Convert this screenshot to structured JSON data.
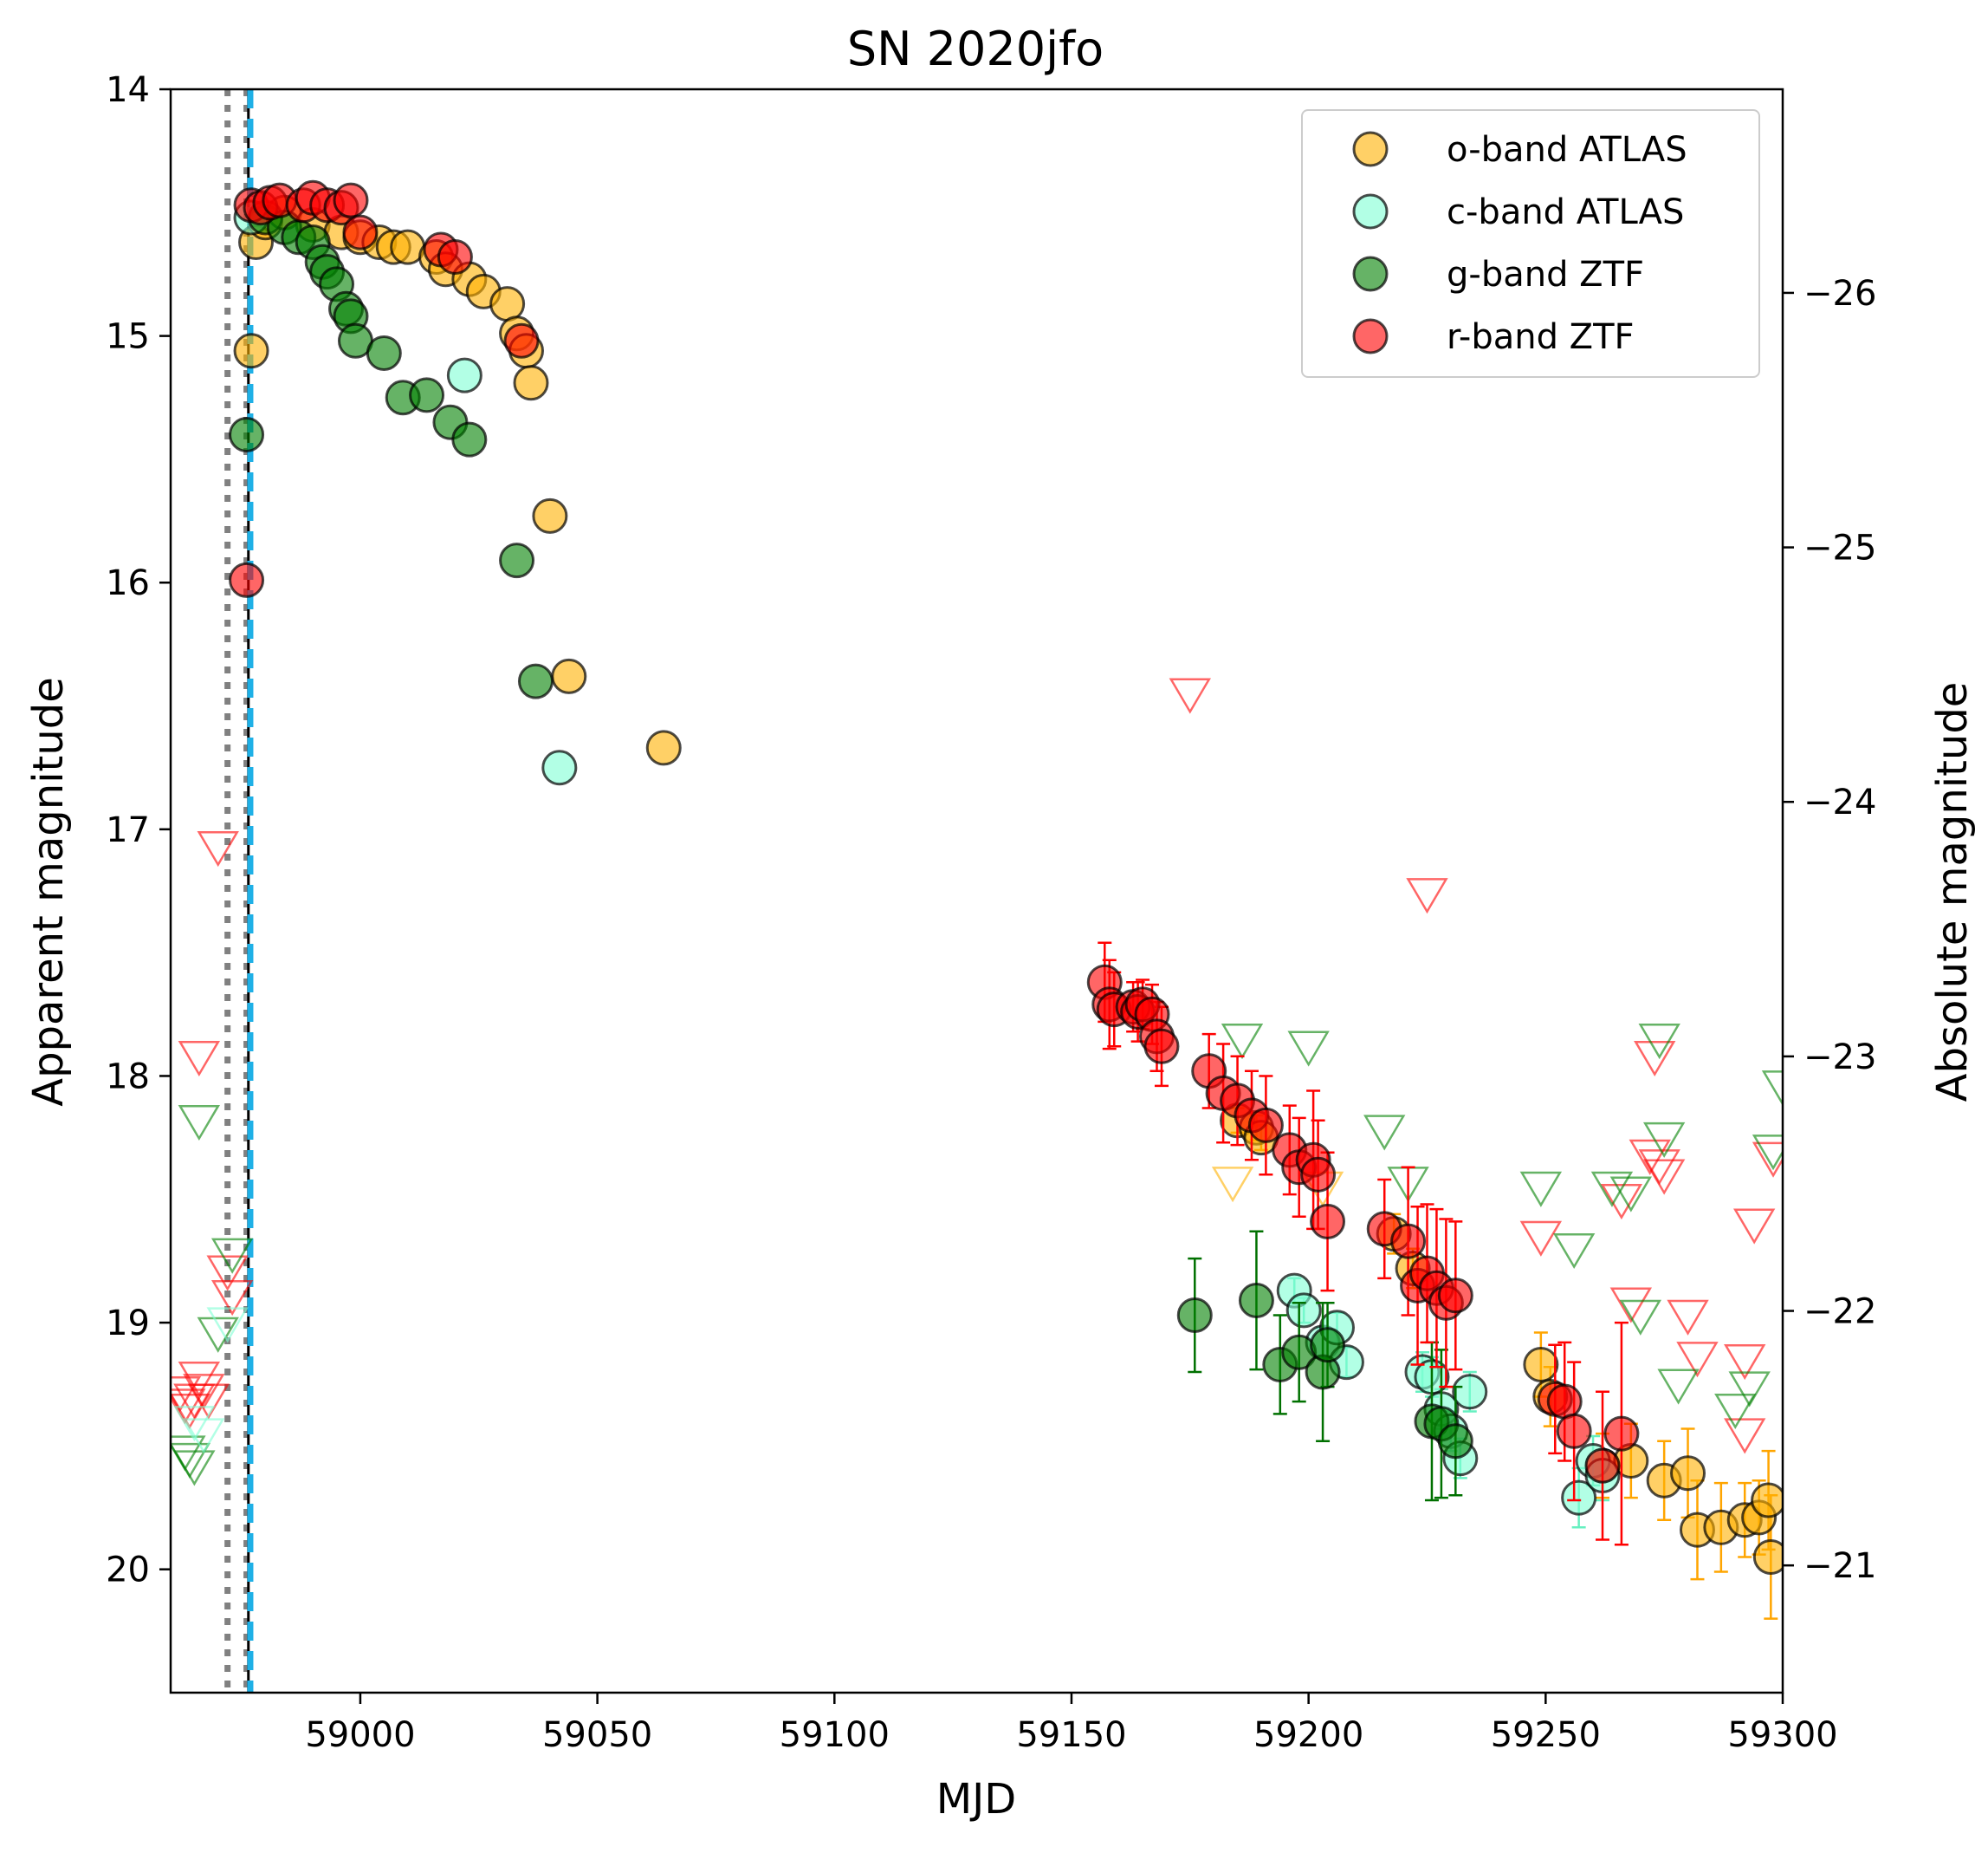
{
  "chart_data": {
    "type": "scatter",
    "title": "SN 2020jfo",
    "xlabel": "MJD",
    "ylabel": "Apparent magnitude",
    "ylabel_right": "Absolute magnitude",
    "xlim": [
      58960,
      59300
    ],
    "ylim": [
      20.5,
      14
    ],
    "ylim_right": [
      -20.5,
      -26.8
    ],
    "x_ticks": [
      59000,
      59050,
      59100,
      59150,
      59200,
      59250,
      59300
    ],
    "y_ticks": [
      14,
      15,
      16,
      17,
      18,
      19,
      20
    ],
    "y_ticks_right": [
      -21,
      -22,
      -23,
      -24,
      -25,
      -26
    ],
    "y_tick_labels_right": [
      "−21",
      "−22",
      "−23",
      "−24",
      "−25",
      "−26"
    ],
    "grid": false,
    "legend_position": "top-right",
    "vertical_lines": [
      {
        "x": 58972,
        "style": "dotted",
        "color": "#808080"
      },
      {
        "x": 58976,
        "style": "dotted",
        "color": "#808080"
      },
      {
        "x": 58976.4,
        "style": "solid",
        "color": "#000000"
      },
      {
        "x": 58976.8,
        "style": "dashed",
        "color": "#1fb0e6"
      }
    ],
    "series": [
      {
        "name": "o-band ATLAS",
        "color": "#ffb000",
        "marker": "circle",
        "points": [
          [
            58977,
            15.06
          ],
          [
            58978,
            14.62
          ],
          [
            58980,
            14.54
          ],
          [
            58984,
            14.5
          ],
          [
            58990,
            14.55
          ],
          [
            58996,
            14.58
          ],
          [
            59000,
            14.6
          ],
          [
            59004,
            14.62
          ],
          [
            59007,
            14.64
          ],
          [
            59010,
            14.64
          ],
          [
            59016,
            14.68
          ],
          [
            59018,
            14.73
          ],
          [
            59023,
            14.77
          ],
          [
            59026,
            14.82
          ],
          [
            59031,
            14.87
          ],
          [
            59033,
            14.99
          ],
          [
            59035,
            15.06
          ],
          [
            59036,
            15.19
          ],
          [
            59040,
            15.73
          ],
          [
            59044,
            16.38
          ],
          [
            59064,
            16.67
          ],
          [
            59185,
            18.18
          ],
          [
            59189,
            18.21
          ],
          [
            59190,
            18.25
          ],
          [
            59218,
            18.64
          ],
          [
            59222,
            18.78
          ],
          [
            59249,
            19.17
          ],
          [
            59251,
            19.3
          ],
          [
            59262,
            19.58
          ],
          [
            59268,
            19.56
          ],
          [
            59275,
            19.64
          ],
          [
            59280,
            19.61
          ],
          [
            59282,
            19.84
          ],
          [
            59287,
            19.83
          ],
          [
            59292,
            19.8
          ],
          [
            59295,
            19.79
          ],
          [
            59297,
            19.72
          ],
          [
            59297.5,
            19.95
          ]
        ],
        "errors": [
          [
            59185,
            0.05
          ],
          [
            59189,
            0.05
          ],
          [
            59190,
            0.05
          ],
          [
            59218,
            0.08
          ],
          [
            59222,
            0.08
          ],
          [
            59249,
            0.13
          ],
          [
            59251,
            0.12
          ],
          [
            59262,
            0.13
          ],
          [
            59268,
            0.15
          ],
          [
            59275,
            0.16
          ],
          [
            59280,
            0.18
          ],
          [
            59282,
            0.2
          ],
          [
            59287,
            0.18
          ],
          [
            59292,
            0.15
          ],
          [
            59295,
            0.15
          ],
          [
            59297,
            0.2
          ],
          [
            59297.5,
            0.25
          ]
        ]
      },
      {
        "name": "c-band ATLAS",
        "color": "#7fffd4",
        "marker": "circle",
        "points": [
          [
            58977,
            14.52
          ],
          [
            59022,
            15.16
          ],
          [
            59042,
            16.75
          ],
          [
            59197,
            18.87
          ],
          [
            59199,
            18.95
          ],
          [
            59203,
            19.08
          ],
          [
            59206,
            19.02
          ],
          [
            59208,
            19.16
          ],
          [
            59224,
            19.2
          ],
          [
            59226,
            19.22
          ],
          [
            59228,
            19.35
          ],
          [
            59230,
            19.44
          ],
          [
            59232,
            19.55
          ],
          [
            59234,
            19.28
          ],
          [
            59257,
            19.71
          ],
          [
            59260,
            19.56
          ],
          [
            59262,
            19.62
          ]
        ],
        "errors": [
          [
            59197,
            0.05
          ],
          [
            59199,
            0.05
          ],
          [
            59203,
            0.06
          ],
          [
            59206,
            0.06
          ],
          [
            59208,
            0.06
          ],
          [
            59224,
            0.08
          ],
          [
            59226,
            0.08
          ],
          [
            59228,
            0.08
          ],
          [
            59230,
            0.08
          ],
          [
            59232,
            0.08
          ],
          [
            59234,
            0.08
          ],
          [
            59257,
            0.12
          ],
          [
            59260,
            0.1
          ],
          [
            59262,
            0.1
          ]
        ]
      },
      {
        "name": "g-band ZTF",
        "color": "#008000",
        "marker": "circle",
        "points": [
          [
            58976,
            15.4
          ],
          [
            58980,
            14.52
          ],
          [
            58984,
            14.56
          ],
          [
            58987,
            14.6
          ],
          [
            58990,
            14.62
          ],
          [
            58992,
            14.7
          ],
          [
            58993,
            14.74
          ],
          [
            58995,
            14.79
          ],
          [
            58997,
            14.89
          ],
          [
            58998,
            14.92
          ],
          [
            58999,
            15.02
          ],
          [
            59005,
            15.07
          ],
          [
            59009,
            15.25
          ],
          [
            59014,
            15.24
          ],
          [
            59019,
            15.35
          ],
          [
            59023,
            15.42
          ],
          [
            59033,
            15.91
          ],
          [
            59037,
            16.4
          ],
          [
            59176,
            18.97
          ],
          [
            59189,
            18.91
          ],
          [
            59194,
            19.17
          ],
          [
            59198,
            19.12
          ],
          [
            59203,
            19.2
          ],
          [
            59204,
            19.09
          ],
          [
            59226,
            19.4
          ],
          [
            59228,
            19.41
          ],
          [
            59231,
            19.48
          ]
        ],
        "errors": [
          [
            59176,
            0.23
          ],
          [
            59189,
            0.28
          ],
          [
            59194,
            0.2
          ],
          [
            59198,
            0.2
          ],
          [
            59203,
            0.28
          ],
          [
            59204,
            0.17
          ],
          [
            59226,
            0.32
          ],
          [
            59228,
            0.3
          ],
          [
            59231,
            0.22
          ]
        ]
      },
      {
        "name": "r-band ZTF",
        "color": "#ff0000",
        "marker": "circle",
        "points": [
          [
            58976,
            15.99
          ],
          [
            58977,
            14.47
          ],
          [
            58979,
            14.48
          ],
          [
            58981,
            14.46
          ],
          [
            58983,
            14.45
          ],
          [
            58988,
            14.47
          ],
          [
            58990,
            14.44
          ],
          [
            58993,
            14.47
          ],
          [
            58996,
            14.48
          ],
          [
            58998,
            14.45
          ],
          [
            59000,
            14.58
          ],
          [
            59017,
            14.65
          ],
          [
            59020,
            14.68
          ],
          [
            59034,
            15.02
          ],
          [
            59157,
            17.62
          ],
          [
            59158,
            17.71
          ],
          [
            59159,
            17.73
          ],
          [
            59163,
            17.72
          ],
          [
            59164,
            17.74
          ],
          [
            59165,
            17.71
          ],
          [
            59167,
            17.75
          ],
          [
            59168,
            17.84
          ],
          [
            59169,
            17.88
          ],
          [
            59179,
            17.98
          ],
          [
            59182,
            18.07
          ],
          [
            59185,
            18.1
          ],
          [
            59188,
            18.16
          ],
          [
            59191,
            18.2
          ],
          [
            59196,
            18.3
          ],
          [
            59198,
            18.37
          ],
          [
            59201,
            18.34
          ],
          [
            59202,
            18.4
          ],
          [
            59204,
            18.59
          ],
          [
            59216,
            18.62
          ],
          [
            59221,
            18.67
          ],
          [
            59223,
            18.85
          ],
          [
            59225,
            18.8
          ],
          [
            59227,
            18.86
          ],
          [
            59229,
            18.92
          ],
          [
            59231,
            18.89
          ],
          [
            59252,
            19.31
          ],
          [
            59254,
            19.32
          ],
          [
            59256,
            19.44
          ],
          [
            59262,
            19.58
          ],
          [
            59266,
            19.45
          ]
        ],
        "errors": [
          [
            59157,
            0.16
          ],
          [
            59158,
            0.18
          ],
          [
            59159,
            0.15
          ],
          [
            59163,
            0.1
          ],
          [
            59164,
            0.12
          ],
          [
            59165,
            0.1
          ],
          [
            59167,
            0.12
          ],
          [
            59168,
            0.14
          ],
          [
            59169,
            0.16
          ],
          [
            59179,
            0.15
          ],
          [
            59182,
            0.2
          ],
          [
            59185,
            0.18
          ],
          [
            59188,
            0.18
          ],
          [
            59191,
            0.2
          ],
          [
            59196,
            0.18
          ],
          [
            59198,
            0.2
          ],
          [
            59201,
            0.28
          ],
          [
            59202,
            0.22
          ],
          [
            59204,
            0.28
          ],
          [
            59216,
            0.2
          ],
          [
            59221,
            0.3
          ],
          [
            59223,
            0.32
          ],
          [
            59225,
            0.28
          ],
          [
            59227,
            0.32
          ],
          [
            59229,
            0.34
          ],
          [
            59231,
            0.3
          ],
          [
            59252,
            0.22
          ],
          [
            59254,
            0.24
          ],
          [
            59256,
            0.28
          ],
          [
            59262,
            0.3
          ],
          [
            59266,
            0.45
          ]
        ]
      }
    ],
    "upper_limits": [
      {
        "band": "r-band ZTF",
        "color": "#ff0000",
        "points": [
          [
            58962,
            19.28
          ],
          [
            58963,
            19.33
          ],
          [
            58964,
            19.35
          ],
          [
            58965,
            19.31
          ],
          [
            58966,
            19.22
          ],
          [
            58967,
            19.27
          ],
          [
            58968,
            19.31
          ],
          [
            58966,
            17.92
          ],
          [
            58970,
            17.07
          ],
          [
            58972,
            18.79
          ],
          [
            58973,
            18.89
          ],
          [
            59175,
            16.45
          ],
          [
            59225,
            17.26
          ],
          [
            59249,
            18.65
          ],
          [
            59266,
            18.5
          ],
          [
            59268,
            18.92
          ],
          [
            59272,
            18.32
          ],
          [
            59274,
            18.36
          ],
          [
            59275,
            18.4
          ],
          [
            59273,
            17.92
          ],
          [
            59280,
            18.97
          ],
          [
            59282,
            19.14
          ],
          [
            59292,
            19.15
          ],
          [
            59294,
            18.6
          ],
          [
            59298,
            18.33
          ],
          [
            59292,
            19.45
          ]
        ]
      },
      {
        "band": "g-band ZTF",
        "color": "#008000",
        "points": [
          [
            58963,
            19.52
          ],
          [
            58964,
            19.55
          ],
          [
            58965,
            19.58
          ],
          [
            58966,
            18.18
          ],
          [
            58970,
            19.04
          ],
          [
            58973,
            18.72
          ],
          [
            59186,
            17.85
          ],
          [
            59200,
            17.88
          ],
          [
            59216,
            18.22
          ],
          [
            59221,
            18.43
          ],
          [
            59249,
            18.45
          ],
          [
            59256,
            18.7
          ],
          [
            59264,
            18.45
          ],
          [
            59268,
            18.47
          ],
          [
            59270,
            18.97
          ],
          [
            59274,
            17.85
          ],
          [
            59275,
            18.25
          ],
          [
            59278,
            19.25
          ],
          [
            59290,
            19.35
          ],
          [
            59293,
            19.26
          ],
          [
            59298,
            18.3
          ],
          [
            59300,
            18.04
          ]
        ]
      },
      {
        "band": "o-band ATLAS",
        "color": "#ffb000",
        "points": [
          [
            59184,
            18.43
          ],
          [
            59203,
            18.45
          ]
        ]
      },
      {
        "band": "c-band ATLAS",
        "color": "#7fffd4",
        "points": [
          [
            58965,
            19.4
          ],
          [
            58967,
            19.45
          ],
          [
            58972,
            19.0
          ]
        ]
      }
    ]
  }
}
